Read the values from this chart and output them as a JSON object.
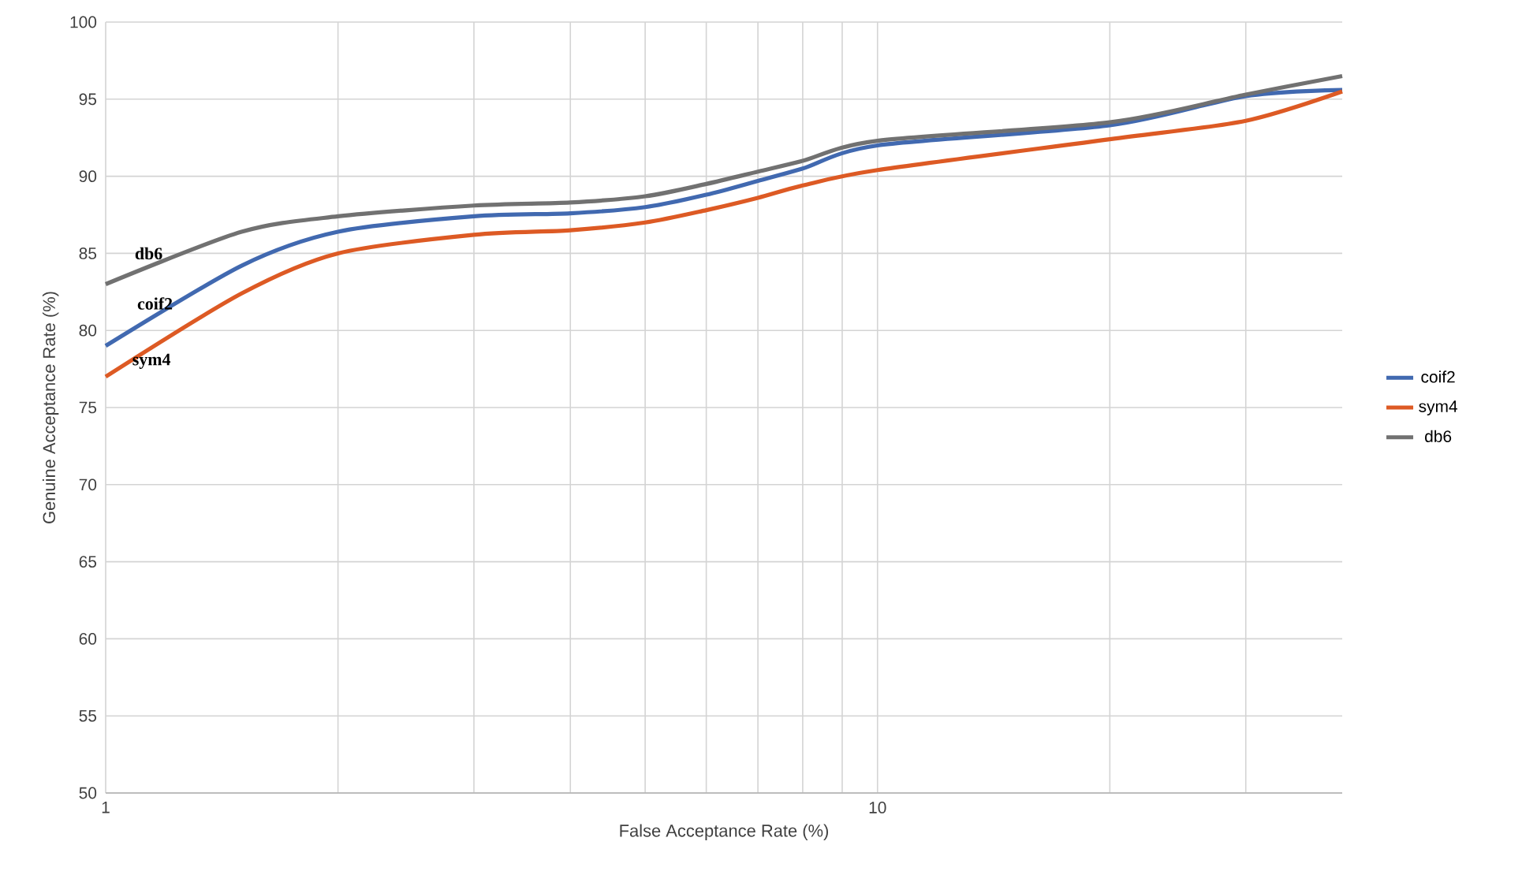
{
  "chart_data": {
    "type": "line",
    "xlabel": "False Acceptance Rate (%)",
    "ylabel": "Genuine Acceptance Rate (%)",
    "log": "x",
    "x": [
      1,
      1.5,
      2,
      3,
      4,
      5,
      6,
      7,
      8,
      10,
      20,
      30,
      40
    ],
    "series": [
      {
        "name": "coif2",
        "color": "#4169b0",
        "values": [
          79,
          84.2,
          86.4,
          87.4,
          87.6,
          88.0,
          88.8,
          89.7,
          90.5,
          92,
          93.3,
          95.2,
          95.6
        ]
      },
      {
        "name": "sym4",
        "color": "#dd5a24",
        "values": [
          77,
          82.4,
          85,
          86.2,
          86.5,
          87,
          87.8,
          88.6,
          89.4,
          90.4,
          92.4,
          93.6,
          95.5
        ]
      },
      {
        "name": "db6",
        "color": "#717171",
        "values": [
          83,
          86.4,
          87.4,
          88.1,
          88.3,
          88.7,
          89.5,
          90.3,
          91,
          92.3,
          93.5,
          95.3,
          96.5
        ]
      }
    ],
    "annotations": [
      "db6",
      "coif2",
      "sym4"
    ],
    "xlim": [
      1,
      40
    ],
    "ylim": [
      50,
      100
    ],
    "xticks": [
      1,
      {
        "value": 2,
        "label": null
      },
      {
        "value": 3,
        "label": null
      },
      {
        "value": 4,
        "label": null
      },
      {
        "value": 5,
        "label": null
      },
      {
        "value": 6,
        "label": null
      },
      {
        "value": 7,
        "label": null
      },
      {
        "value": 8,
        "label": null
      },
      {
        "value": 9,
        "label": null
      },
      10,
      {
        "value": 20,
        "label": null
      },
      {
        "value": 30,
        "label": null
      }
    ],
    "yticks": [
      50,
      55,
      60,
      65,
      70,
      75,
      80,
      85,
      90,
      95,
      100
    ],
    "grid": true,
    "legend": "right",
    "line_style": "solid",
    "marker": "none"
  }
}
